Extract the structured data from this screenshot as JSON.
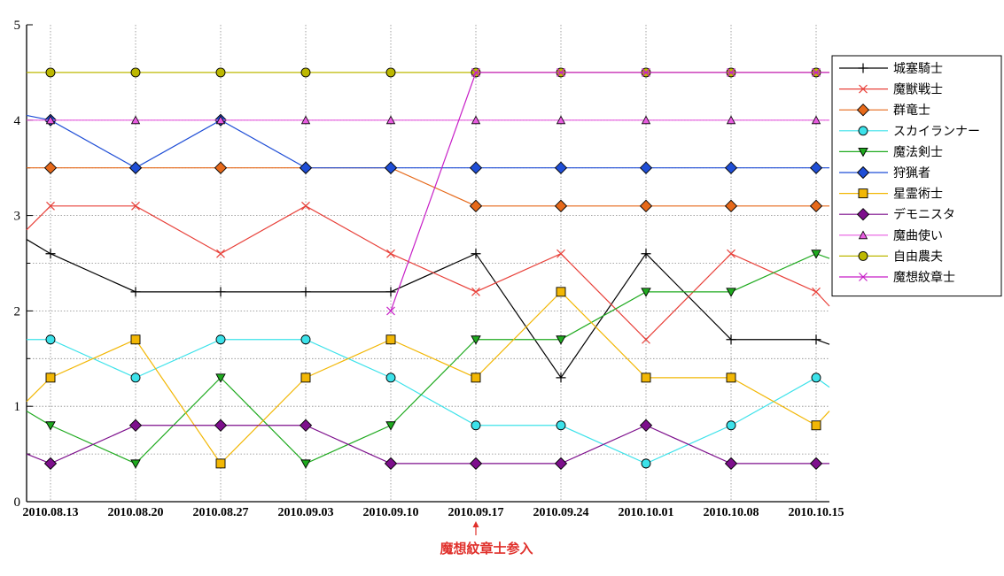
{
  "chart_data": {
    "type": "line",
    "title": "",
    "xlabel": "",
    "ylabel": "",
    "categories": [
      "2010.08.13",
      "2010.08.20",
      "2010.08.27",
      "2010.09.03",
      "2010.09.10",
      "2010.09.17",
      "2010.09.24",
      "2010.10.01",
      "2010.10.08",
      "2010.10.15"
    ],
    "yticks": [
      "0",
      "1",
      "2",
      "3",
      "4",
      "5"
    ],
    "ylim": [
      0,
      5
    ],
    "grid": true,
    "legend_position": "right",
    "annotation": {
      "text": "魔想紋章士参入",
      "category": "2010.09.17",
      "color": "#e0302b"
    },
    "series": [
      {
        "name": "城塞騎士",
        "color": "#000000",
        "marker": "plus",
        "values": [
          2.6,
          2.2,
          2.2,
          2.2,
          2.2,
          2.6,
          1.3,
          2.6,
          1.7,
          1.7
        ],
        "edge_left": 2.75,
        "edge_right": 1.65
      },
      {
        "name": "魔獣戦士",
        "color": "#e8413a",
        "marker": "x",
        "values": [
          3.1,
          3.1,
          2.6,
          3.1,
          2.6,
          2.2,
          2.6,
          1.7,
          2.6,
          2.2
        ],
        "edge_left": 2.85,
        "edge_right": 2.05
      },
      {
        "name": "群竜士",
        "color": "#e6691a",
        "marker": "diamond",
        "values": [
          3.5,
          3.5,
          3.5,
          3.5,
          3.5,
          3.1,
          3.1,
          3.1,
          3.1,
          3.1
        ],
        "edge_left": 3.5,
        "edge_right": 3.1
      },
      {
        "name": "スカイランナー",
        "color": "#3ce2ea",
        "marker": "circle",
        "values": [
          1.7,
          1.3,
          1.7,
          1.7,
          1.3,
          0.8,
          0.8,
          0.4,
          0.8,
          1.3
        ],
        "edge_left": 1.7,
        "edge_right": 1.2
      },
      {
        "name": "魔法剣士",
        "color": "#1faa1f",
        "marker": "triangle-down",
        "values": [
          0.8,
          0.4,
          1.3,
          0.4,
          0.8,
          1.7,
          1.7,
          2.2,
          2.2,
          2.6
        ],
        "edge_left": 0.95,
        "edge_right": 2.55
      },
      {
        "name": "狩猟者",
        "color": "#1f4ed6",
        "marker": "diamond",
        "values": [
          4.0,
          3.5,
          4.0,
          3.5,
          3.5,
          3.5,
          3.5,
          3.5,
          3.5,
          3.5
        ],
        "edge_left": 4.05,
        "edge_right": 3.5
      },
      {
        "name": "星霊術士",
        "color": "#f2b705",
        "marker": "square",
        "values": [
          1.3,
          1.7,
          0.4,
          1.3,
          1.7,
          1.3,
          2.2,
          1.3,
          1.3,
          0.8
        ],
        "edge_left": 1.05,
        "edge_right": 0.95
      },
      {
        "name": "デモニスタ",
        "color": "#7d0f8c",
        "marker": "diamond",
        "values": [
          0.4,
          0.8,
          0.8,
          0.8,
          0.4,
          0.4,
          0.4,
          0.8,
          0.4,
          0.4
        ],
        "edge_left": 0.5,
        "edge_right": 0.4
      },
      {
        "name": "魔曲使い",
        "color": "#e85ce0",
        "marker": "triangle-up",
        "values": [
          4.0,
          4.0,
          4.0,
          4.0,
          4.0,
          4.0,
          4.0,
          4.0,
          4.0,
          4.0
        ],
        "edge_left": 4.0,
        "edge_right": 4.0
      },
      {
        "name": "自由農夫",
        "color": "#bdb800",
        "marker": "circle",
        "values": [
          4.5,
          4.5,
          4.5,
          4.5,
          4.5,
          4.5,
          4.5,
          4.5,
          4.5,
          4.5
        ],
        "edge_left": 4.5,
        "edge_right": 4.5
      },
      {
        "name": "魔想紋章士",
        "color": "#c71fc7",
        "marker": "x",
        "values": [
          null,
          null,
          null,
          null,
          2.0,
          4.5,
          4.5,
          4.5,
          4.5,
          4.5
        ],
        "edge_left": null,
        "edge_right": 4.5
      }
    ]
  }
}
